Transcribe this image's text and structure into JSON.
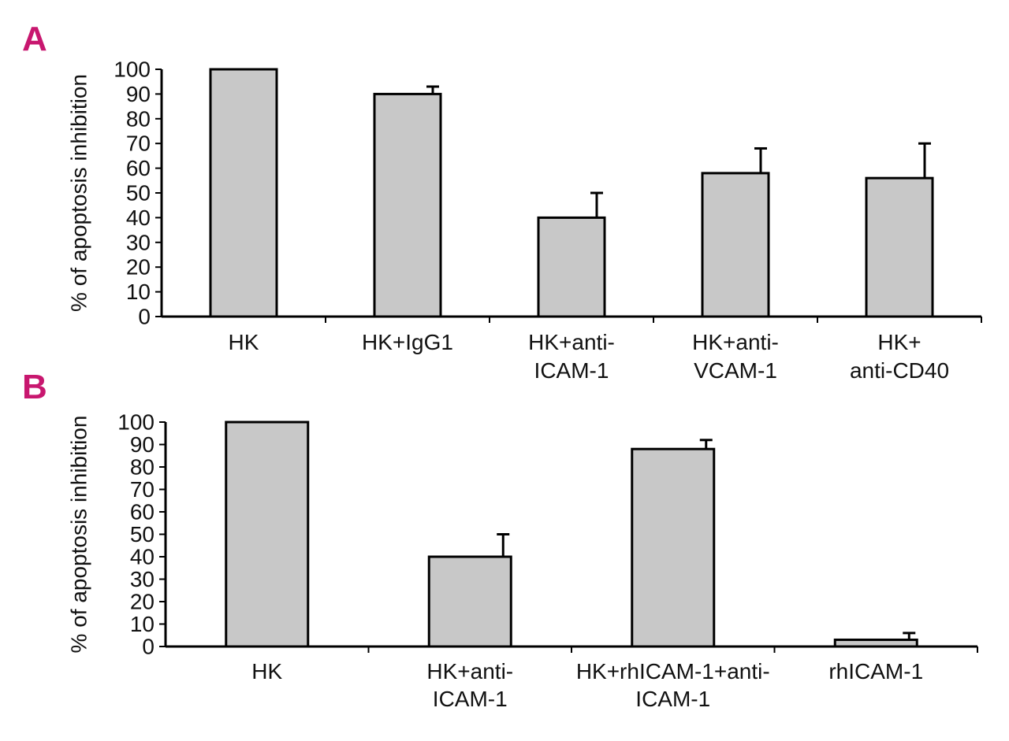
{
  "figure": {
    "panel_color": "#c8176f",
    "bar_color": "#c8c8c8",
    "line_color": "#000000"
  },
  "chart_data": [
    {
      "panel_label": "A",
      "type": "bar",
      "ylabel": "% of apoptosis inhibition",
      "xlabel": "",
      "ylim": [
        0,
        100
      ],
      "yticks": [
        "100",
        "90",
        "80",
        "70",
        "60",
        "50",
        "40",
        "30",
        "20",
        "10",
        "0"
      ],
      "yticks_values": [
        100,
        90,
        80,
        70,
        60,
        50,
        40,
        30,
        20,
        10,
        0
      ],
      "categories": [
        [
          "HK"
        ],
        [
          "HK+IgG1"
        ],
        [
          "HK+anti-",
          "ICAM-1"
        ],
        [
          "HK+anti-",
          "VCAM-1"
        ],
        [
          "HK+",
          "anti-CD40"
        ]
      ],
      "values": [
        100,
        90,
        40,
        58,
        56
      ],
      "error": [
        0,
        3,
        10,
        10,
        14
      ]
    },
    {
      "panel_label": "B",
      "type": "bar",
      "ylabel": "% of apoptosis inhibition",
      "xlabel": "",
      "ylim": [
        0,
        100
      ],
      "yticks": [
        "100",
        "90",
        "80",
        "70",
        "60",
        "50",
        "40",
        "30",
        "20",
        "10",
        "0"
      ],
      "yticks_values": [
        100,
        90,
        80,
        70,
        60,
        50,
        40,
        30,
        20,
        10,
        0
      ],
      "categories": [
        [
          "HK"
        ],
        [
          "HK+anti-",
          "ICAM-1"
        ],
        [
          "HK+rhICAM-1+anti-",
          "ICAM-1"
        ],
        [
          "rhICAM-1"
        ]
      ],
      "values": [
        100,
        40,
        88,
        3
      ],
      "error": [
        0,
        10,
        4,
        3
      ]
    }
  ]
}
